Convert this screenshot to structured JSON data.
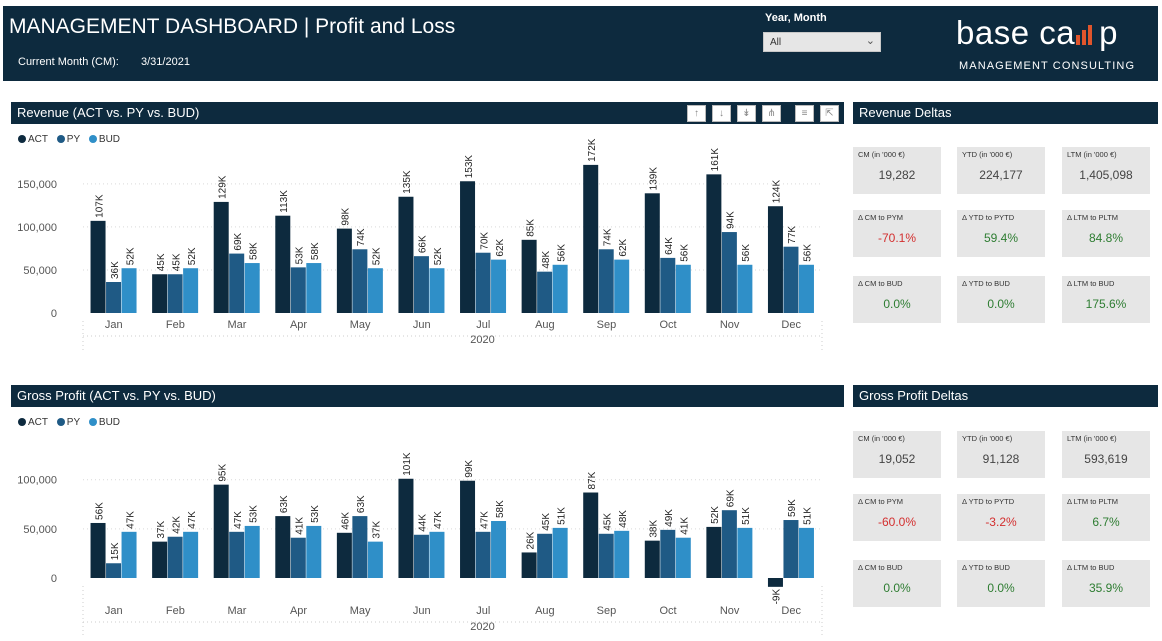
{
  "header": {
    "title": "MANAGEMENT DASHBOARD | Profit and Loss",
    "cm_label": "Current Month (CM):",
    "cm_value": "3/31/2021",
    "slicer_label": "Year, Month",
    "slicer_value": "All",
    "logo_text_a": "base ca",
    "logo_text_b": "p",
    "logo_sub": "MANAGEMENT CONSULTING"
  },
  "colors": {
    "act": "#0d2a3e",
    "py": "#1f5a85",
    "bud": "#2f8fc8",
    "bar_bg": "#0d2a3e",
    "kpi_bg": "#e6e6e6",
    "neg": "#d32f2f",
    "pos": "#2e7d32"
  },
  "toolbar": {
    "icons": [
      "arrow-up",
      "arrow-down",
      "double-arrow-down",
      "fork",
      "filter",
      "focus"
    ]
  },
  "legend": {
    "act": "ACT",
    "py": "PY",
    "bud": "BUD"
  },
  "revenue_panel": {
    "title": "Revenue (ACT vs. PY vs. BUD)"
  },
  "gp_panel": {
    "title": "Gross Profit (ACT vs. PY vs. BUD)"
  },
  "revenue_deltas": {
    "title": "Revenue Deltas",
    "cards": [
      {
        "label": "CM (in '000 €)",
        "value": "19,282",
        "tone": "neutral"
      },
      {
        "label": "YTD (in '000 €)",
        "value": "224,177",
        "tone": "neutral"
      },
      {
        "label": "LTM (in '000 €)",
        "value": "1,405,098",
        "tone": "neutral"
      },
      {
        "label": "Δ CM to PYM",
        "value": "-70.1%",
        "tone": "neg"
      },
      {
        "label": "Δ YTD to PYTD",
        "value": "59.4%",
        "tone": "pos"
      },
      {
        "label": "Δ LTM to PLTM",
        "value": "84.8%",
        "tone": "pos"
      },
      {
        "label": "Δ CM to BUD",
        "value": "0.0%",
        "tone": "pos"
      },
      {
        "label": "Δ YTD to BUD",
        "value": "0.0%",
        "tone": "pos"
      },
      {
        "label": "Δ LTM to BUD",
        "value": "175.6%",
        "tone": "pos"
      }
    ]
  },
  "gp_deltas": {
    "title": "Gross Profit Deltas",
    "cards": [
      {
        "label": "CM (in '000 €)",
        "value": "19,052",
        "tone": "neutral"
      },
      {
        "label": "YTD (in '000 €)",
        "value": "91,128",
        "tone": "neutral"
      },
      {
        "label": "LTM (in '000 €)",
        "value": "593,619",
        "tone": "neutral"
      },
      {
        "label": "Δ CM to PYM",
        "value": "-60.0%",
        "tone": "neg"
      },
      {
        "label": "Δ YTD to PYTD",
        "value": "-3.2%",
        "tone": "neg"
      },
      {
        "label": "Δ LTM to PLTM",
        "value": "6.7%",
        "tone": "pos"
      },
      {
        "label": "Δ CM to BUD",
        "value": "0.0%",
        "tone": "pos"
      },
      {
        "label": "Δ YTD to BUD",
        "value": "0.0%",
        "tone": "pos"
      },
      {
        "label": "Δ LTM to BUD",
        "value": "35.9%",
        "tone": "pos"
      }
    ]
  },
  "chart_data": [
    {
      "type": "bar",
      "title": "Revenue (ACT vs. PY vs. BUD)",
      "categories": [
        "Jan",
        "Feb",
        "Mar",
        "Apr",
        "May",
        "Jun",
        "Jul",
        "Aug",
        "Sep",
        "Oct",
        "Nov",
        "Dec"
      ],
      "xlabel": "2020",
      "ylim": [
        0,
        180000
      ],
      "yticks": [
        0,
        50000,
        100000,
        150000
      ],
      "ytick_labels": [
        "0",
        "50,000",
        "100,000",
        "150,000"
      ],
      "series": [
        {
          "name": "ACT",
          "values": [
            107000,
            45000,
            129000,
            113000,
            98000,
            135000,
            153000,
            85000,
            172000,
            139000,
            161000,
            124000
          ],
          "labels": [
            "107K",
            "45K",
            "129K",
            "113K",
            "98K",
            "135K",
            "153K",
            "85K",
            "172K",
            "139K",
            "161K",
            "124K"
          ]
        },
        {
          "name": "PY",
          "values": [
            36000,
            45000,
            69000,
            53000,
            74000,
            66000,
            70000,
            48000,
            74000,
            64000,
            94000,
            77000
          ],
          "labels": [
            "36K",
            "45K",
            "69K",
            "53K",
            "74K",
            "66K",
            "70K",
            "48K",
            "74K",
            "64K",
            "94K",
            "77K"
          ]
        },
        {
          "name": "BUD",
          "values": [
            52000,
            52000,
            58000,
            58000,
            52000,
            52000,
            62000,
            56000,
            62000,
            56000,
            56000,
            56000
          ],
          "labels": [
            "52K",
            "52K",
            "58K",
            "58K",
            "52K",
            "52K",
            "62K",
            "56K",
            "62K",
            "56K",
            "56K",
            "56K"
          ]
        }
      ]
    },
    {
      "type": "bar",
      "title": "Gross Profit (ACT vs. PY vs. BUD)",
      "categories": [
        "Jan",
        "Feb",
        "Mar",
        "Apr",
        "May",
        "Jun",
        "Jul",
        "Aug",
        "Sep",
        "Oct",
        "Nov",
        "Dec"
      ],
      "xlabel": "2020",
      "ylim": [
        -15000,
        115000
      ],
      "yticks": [
        0,
        50000,
        100000
      ],
      "ytick_labels": [
        "0",
        "50,000",
        "100,000"
      ],
      "series": [
        {
          "name": "ACT",
          "values": [
            56000,
            37000,
            95000,
            63000,
            46000,
            101000,
            99000,
            26000,
            87000,
            38000,
            52000,
            -9000
          ],
          "labels": [
            "56K",
            "37K",
            "95K",
            "63K",
            "46K",
            "101K",
            "99K",
            "26K",
            "87K",
            "38K",
            "52K",
            "-9K"
          ]
        },
        {
          "name": "PY",
          "values": [
            15000,
            42000,
            47000,
            41000,
            63000,
            44000,
            47000,
            45000,
            45000,
            49000,
            69000,
            59000
          ],
          "labels": [
            "15K",
            "42K",
            "47K",
            "41K",
            "63K",
            "44K",
            "47K",
            "45K",
            "45K",
            "49K",
            "69K",
            "59K"
          ]
        },
        {
          "name": "BUD",
          "values": [
            47000,
            47000,
            53000,
            53000,
            37000,
            47000,
            58000,
            51000,
            48000,
            41000,
            51000,
            51000
          ],
          "labels": [
            "47K",
            "47K",
            "53K",
            "53K",
            "37K",
            "47K",
            "58K",
            "51K",
            "48K",
            "41K",
            "51K",
            "51K"
          ]
        }
      ]
    }
  ]
}
